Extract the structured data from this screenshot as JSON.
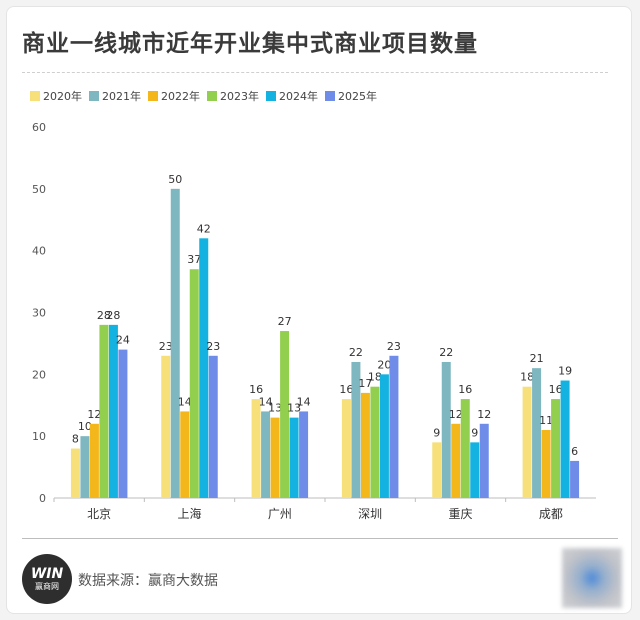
{
  "title": "商业一线城市近年开业集中式商业项目数量",
  "legend": [
    {
      "name": "2020年",
      "color": "#f7e07a"
    },
    {
      "name": "2021年",
      "color": "#7fb7c1"
    },
    {
      "name": "2022年",
      "color": "#f3b61b"
    },
    {
      "name": "2023年",
      "color": "#93cf4f"
    },
    {
      "name": "2024年",
      "color": "#14b2e0"
    },
    {
      "name": "2025年",
      "color": "#6f8de8"
    }
  ],
  "chart_data": {
    "type": "bar",
    "categories": [
      "北京",
      "上海",
      "广州",
      "深圳",
      "重庆",
      "成都"
    ],
    "series": [
      {
        "name": "2020年",
        "values": [
          8,
          23,
          16,
          16,
          9,
          18
        ]
      },
      {
        "name": "2021年",
        "values": [
          10,
          50,
          14,
          22,
          22,
          21
        ]
      },
      {
        "name": "2022年",
        "values": [
          12,
          14,
          13,
          17,
          12,
          11
        ]
      },
      {
        "name": "2023年",
        "values": [
          28,
          37,
          27,
          18,
          16,
          16
        ]
      },
      {
        "name": "2024年",
        "values": [
          28,
          42,
          13,
          20,
          9,
          19
        ]
      },
      {
        "name": "2025年",
        "values": [
          24,
          23,
          14,
          23,
          12,
          6
        ]
      }
    ],
    "ylim": [
      0,
      60
    ],
    "yticks": [
      0,
      10,
      20,
      30,
      40,
      50,
      60
    ],
    "grid": false,
    "legend_position": "top-left",
    "data_labels": true
  },
  "footer": {
    "logo_mark": "WIN",
    "logo_text": "赢商网",
    "source": "数据来源：赢商大数据"
  }
}
